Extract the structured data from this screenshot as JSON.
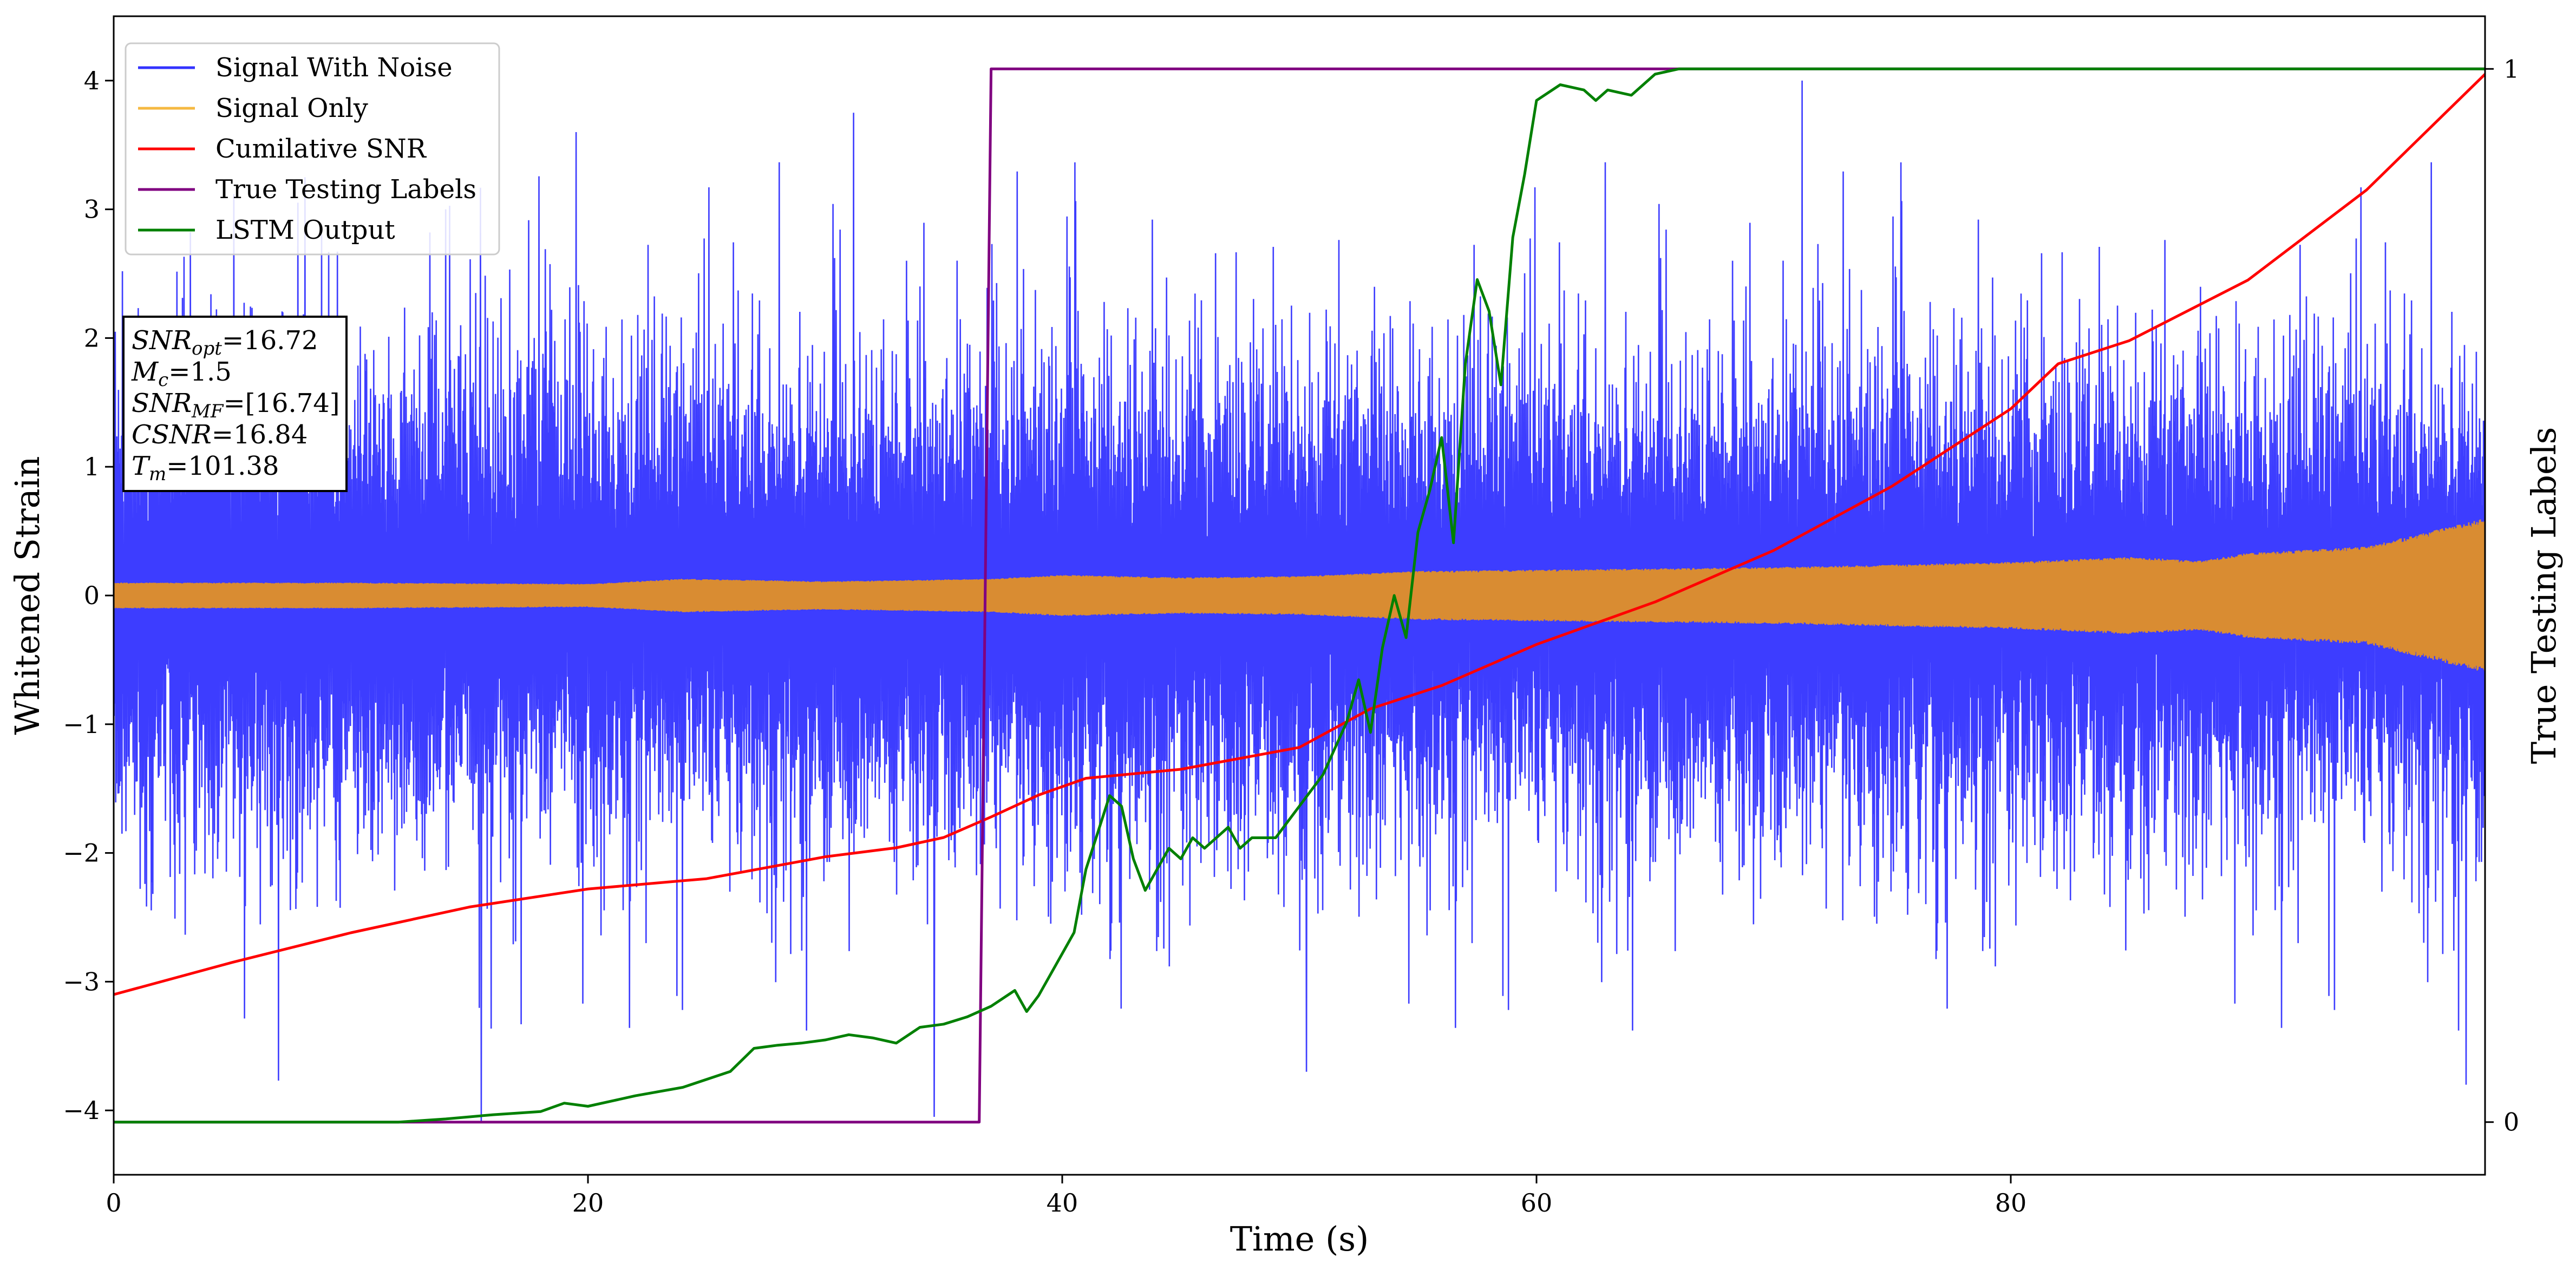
{
  "chart_data": {
    "type": "line",
    "xlabel": "Time (s)",
    "ylabel": "Whitened Strain",
    "y2label": "True Testing Labels",
    "xlim": [
      0,
      100
    ],
    "ylim": [
      -4.5,
      4.5
    ],
    "y2lim": [
      -0.05,
      1.05
    ],
    "x_ticks": [
      0,
      20,
      40,
      60,
      80
    ],
    "y_ticks": [
      -4,
      -3,
      -2,
      -1,
      0,
      1,
      2,
      3,
      4
    ],
    "y2_ticks": [
      0,
      1
    ],
    "grid": false,
    "legend_position": "top-left",
    "legend": [
      {
        "name": "Signal With Noise",
        "color": "#3333ff"
      },
      {
        "name": "Signal Only",
        "color": "#f5b942"
      },
      {
        "name": "Cumilative SNR",
        "color": "#ff0000"
      },
      {
        "name": "True Testing Labels",
        "color": "#800080"
      },
      {
        "name": "LSTM Output",
        "color": "#008000"
      }
    ],
    "info_box": [
      {
        "sym": "SNR",
        "sub": "opt",
        "val": "=16.72"
      },
      {
        "sym": "M",
        "sub": "c",
        "val": "=1.5"
      },
      {
        "sym": "SNR",
        "sub": "MF",
        "val": "=[16.74]"
      },
      {
        "sym": "CSNR",
        "sub": "",
        "val": "=16.84"
      },
      {
        "sym": "T",
        "sub": "m",
        "val": "=101.38"
      }
    ],
    "series": [
      {
        "name": "Signal With Noise",
        "axis": "left",
        "color": "#3333ff",
        "style": "dense noise band",
        "envelope_x": [
          0,
          10,
          20,
          30,
          40,
          50,
          60,
          70,
          80,
          90,
          100
        ],
        "envelope_typical": [
          [
            -1.6,
            1.6
          ],
          [
            -1.6,
            1.6
          ],
          [
            -1.6,
            1.6
          ],
          [
            -1.6,
            1.6
          ],
          [
            -1.6,
            1.6
          ],
          [
            -1.6,
            1.6
          ],
          [
            -1.6,
            1.6
          ],
          [
            -1.6,
            1.6
          ],
          [
            -1.6,
            1.6
          ],
          [
            -1.6,
            1.6
          ],
          [
            -1.6,
            1.6
          ]
        ],
        "peaks": [
          {
            "x": 15.5,
            "y": -4.1
          },
          {
            "x": 34.6,
            "y": -4.05
          },
          {
            "x": 19.5,
            "y": 3.6
          },
          {
            "x": 31.2,
            "y": 3.75
          },
          {
            "x": 71.2,
            "y": 4.0
          },
          {
            "x": 50.3,
            "y": -3.7
          },
          {
            "x": 99.2,
            "y": -3.8
          }
        ]
      },
      {
        "name": "Signal Only",
        "axis": "left",
        "color": "#d98c32",
        "style": "oscillating band",
        "envelope_x": [
          0,
          10,
          20,
          24,
          30,
          37,
          40,
          45,
          50,
          55,
          60,
          65,
          70,
          75,
          80,
          85,
          88,
          90,
          95,
          100
        ],
        "envelope_amplitude": [
          0.1,
          0.1,
          0.09,
          0.13,
          0.11,
          0.13,
          0.16,
          0.14,
          0.15,
          0.19,
          0.2,
          0.21,
          0.22,
          0.24,
          0.26,
          0.3,
          0.27,
          0.33,
          0.38,
          0.6
        ]
      },
      {
        "name": "Cumilative SNR",
        "axis": "left",
        "color": "#ff0000",
        "x": [
          0,
          5,
          10,
          15,
          20,
          25,
          30,
          33,
          35,
          37,
          39,
          41,
          45,
          50,
          53,
          56,
          60,
          65,
          70,
          75,
          80,
          82,
          85,
          90,
          95,
          100
        ],
        "values": [
          -3.1,
          -2.85,
          -2.62,
          -2.42,
          -2.28,
          -2.2,
          -2.03,
          -1.96,
          -1.88,
          -1.72,
          -1.55,
          -1.42,
          -1.35,
          -1.18,
          -0.88,
          -0.7,
          -0.38,
          -0.05,
          0.35,
          0.85,
          1.45,
          1.8,
          1.98,
          2.45,
          3.15,
          4.05
        ]
      },
      {
        "name": "True Testing Labels",
        "axis": "right",
        "color": "#800080",
        "x": [
          0,
          36.5,
          37.0,
          100
        ],
        "values": [
          0,
          0,
          1,
          1
        ]
      },
      {
        "name": "LSTM Output",
        "axis": "right",
        "color": "#008000",
        "x": [
          0,
          12,
          14,
          16,
          18,
          19,
          20,
          22,
          24,
          26,
          27,
          28,
          29,
          30,
          31,
          32,
          33,
          34,
          35,
          36,
          37,
          38,
          38.5,
          39,
          40,
          40.5,
          41,
          42,
          42.5,
          43,
          43.5,
          44,
          44.5,
          45,
          45.5,
          46,
          46.5,
          47,
          47.5,
          48,
          49,
          50,
          51,
          52,
          52.5,
          53,
          53.5,
          54,
          54.5,
          55,
          55.5,
          56,
          56.5,
          57,
          57.5,
          58,
          58.5,
          59,
          59.5,
          60,
          61,
          62,
          62.5,
          63,
          64,
          65,
          66,
          70,
          100
        ],
        "values": [
          0,
          0,
          0.003,
          0.007,
          0.01,
          0.018,
          0.015,
          0.025,
          0.033,
          0.048,
          0.07,
          0.073,
          0.075,
          0.078,
          0.083,
          0.08,
          0.075,
          0.09,
          0.093,
          0.1,
          0.11,
          0.125,
          0.105,
          0.12,
          0.16,
          0.18,
          0.24,
          0.31,
          0.3,
          0.25,
          0.22,
          0.24,
          0.26,
          0.25,
          0.27,
          0.26,
          0.27,
          0.28,
          0.26,
          0.27,
          0.27,
          0.3,
          0.33,
          0.38,
          0.42,
          0.37,
          0.45,
          0.5,
          0.46,
          0.56,
          0.6,
          0.65,
          0.55,
          0.72,
          0.8,
          0.77,
          0.7,
          0.84,
          0.9,
          0.97,
          0.985,
          0.98,
          0.97,
          0.98,
          0.975,
          0.995,
          1.0,
          1.0,
          1.0
        ]
      }
    ]
  }
}
